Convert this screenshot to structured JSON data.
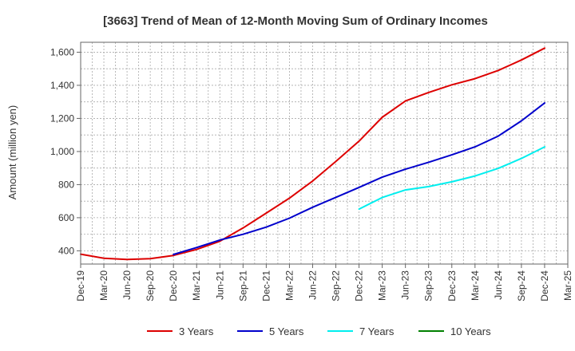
{
  "chart_data": {
    "type": "line",
    "title": "[3663]  Trend of Mean of 12-Month Moving Sum of Ordinary Incomes",
    "xlabel": "",
    "ylabel": "Amount (million yen)",
    "ylim": [
      320,
      1660
    ],
    "yticks": [
      400,
      600,
      800,
      1000,
      1200,
      1400,
      1600
    ],
    "ytick_labels": [
      "400",
      "600",
      "800",
      "1,000",
      "1,200",
      "1,400",
      "1,600"
    ],
    "x_categories": [
      "Dec-19",
      "Mar-20",
      "Jun-20",
      "Sep-20",
      "Dec-20",
      "Mar-21",
      "Jun-21",
      "Sep-21",
      "Dec-21",
      "Mar-22",
      "Jun-22",
      "Sep-22",
      "Dec-22",
      "Mar-23",
      "Jun-23",
      "Sep-23",
      "Dec-23",
      "Mar-24",
      "Jun-24",
      "Sep-24",
      "Dec-24",
      "Mar-25"
    ],
    "grid": true,
    "legend_position": "bottom",
    "series": [
      {
        "name": "3 Years",
        "color": "#dd0000",
        "values": [
          380,
          355,
          348,
          353,
          372,
          408,
          458,
          538,
          628,
          718,
          822,
          940,
          1063,
          1207,
          1305,
          1357,
          1403,
          1440,
          1490,
          1553,
          1625,
          null
        ]
      },
      {
        "name": "5 Years",
        "color": "#0000cc",
        "values": [
          null,
          null,
          null,
          null,
          378,
          420,
          465,
          500,
          543,
          597,
          663,
          723,
          783,
          845,
          893,
          935,
          980,
          1028,
          1093,
          1185,
          1293,
          null
        ]
      },
      {
        "name": "7 Years",
        "color": "#00eeee",
        "values": [
          null,
          null,
          null,
          null,
          null,
          null,
          null,
          null,
          null,
          null,
          null,
          null,
          652,
          722,
          768,
          788,
          817,
          852,
          898,
          958,
          1028,
          null
        ]
      },
      {
        "name": "10 Years",
        "color": "#008000",
        "values": [
          null,
          null,
          null,
          null,
          null,
          null,
          null,
          null,
          null,
          null,
          null,
          null,
          null,
          null,
          null,
          null,
          null,
          null,
          null,
          null,
          null,
          null
        ]
      }
    ]
  }
}
